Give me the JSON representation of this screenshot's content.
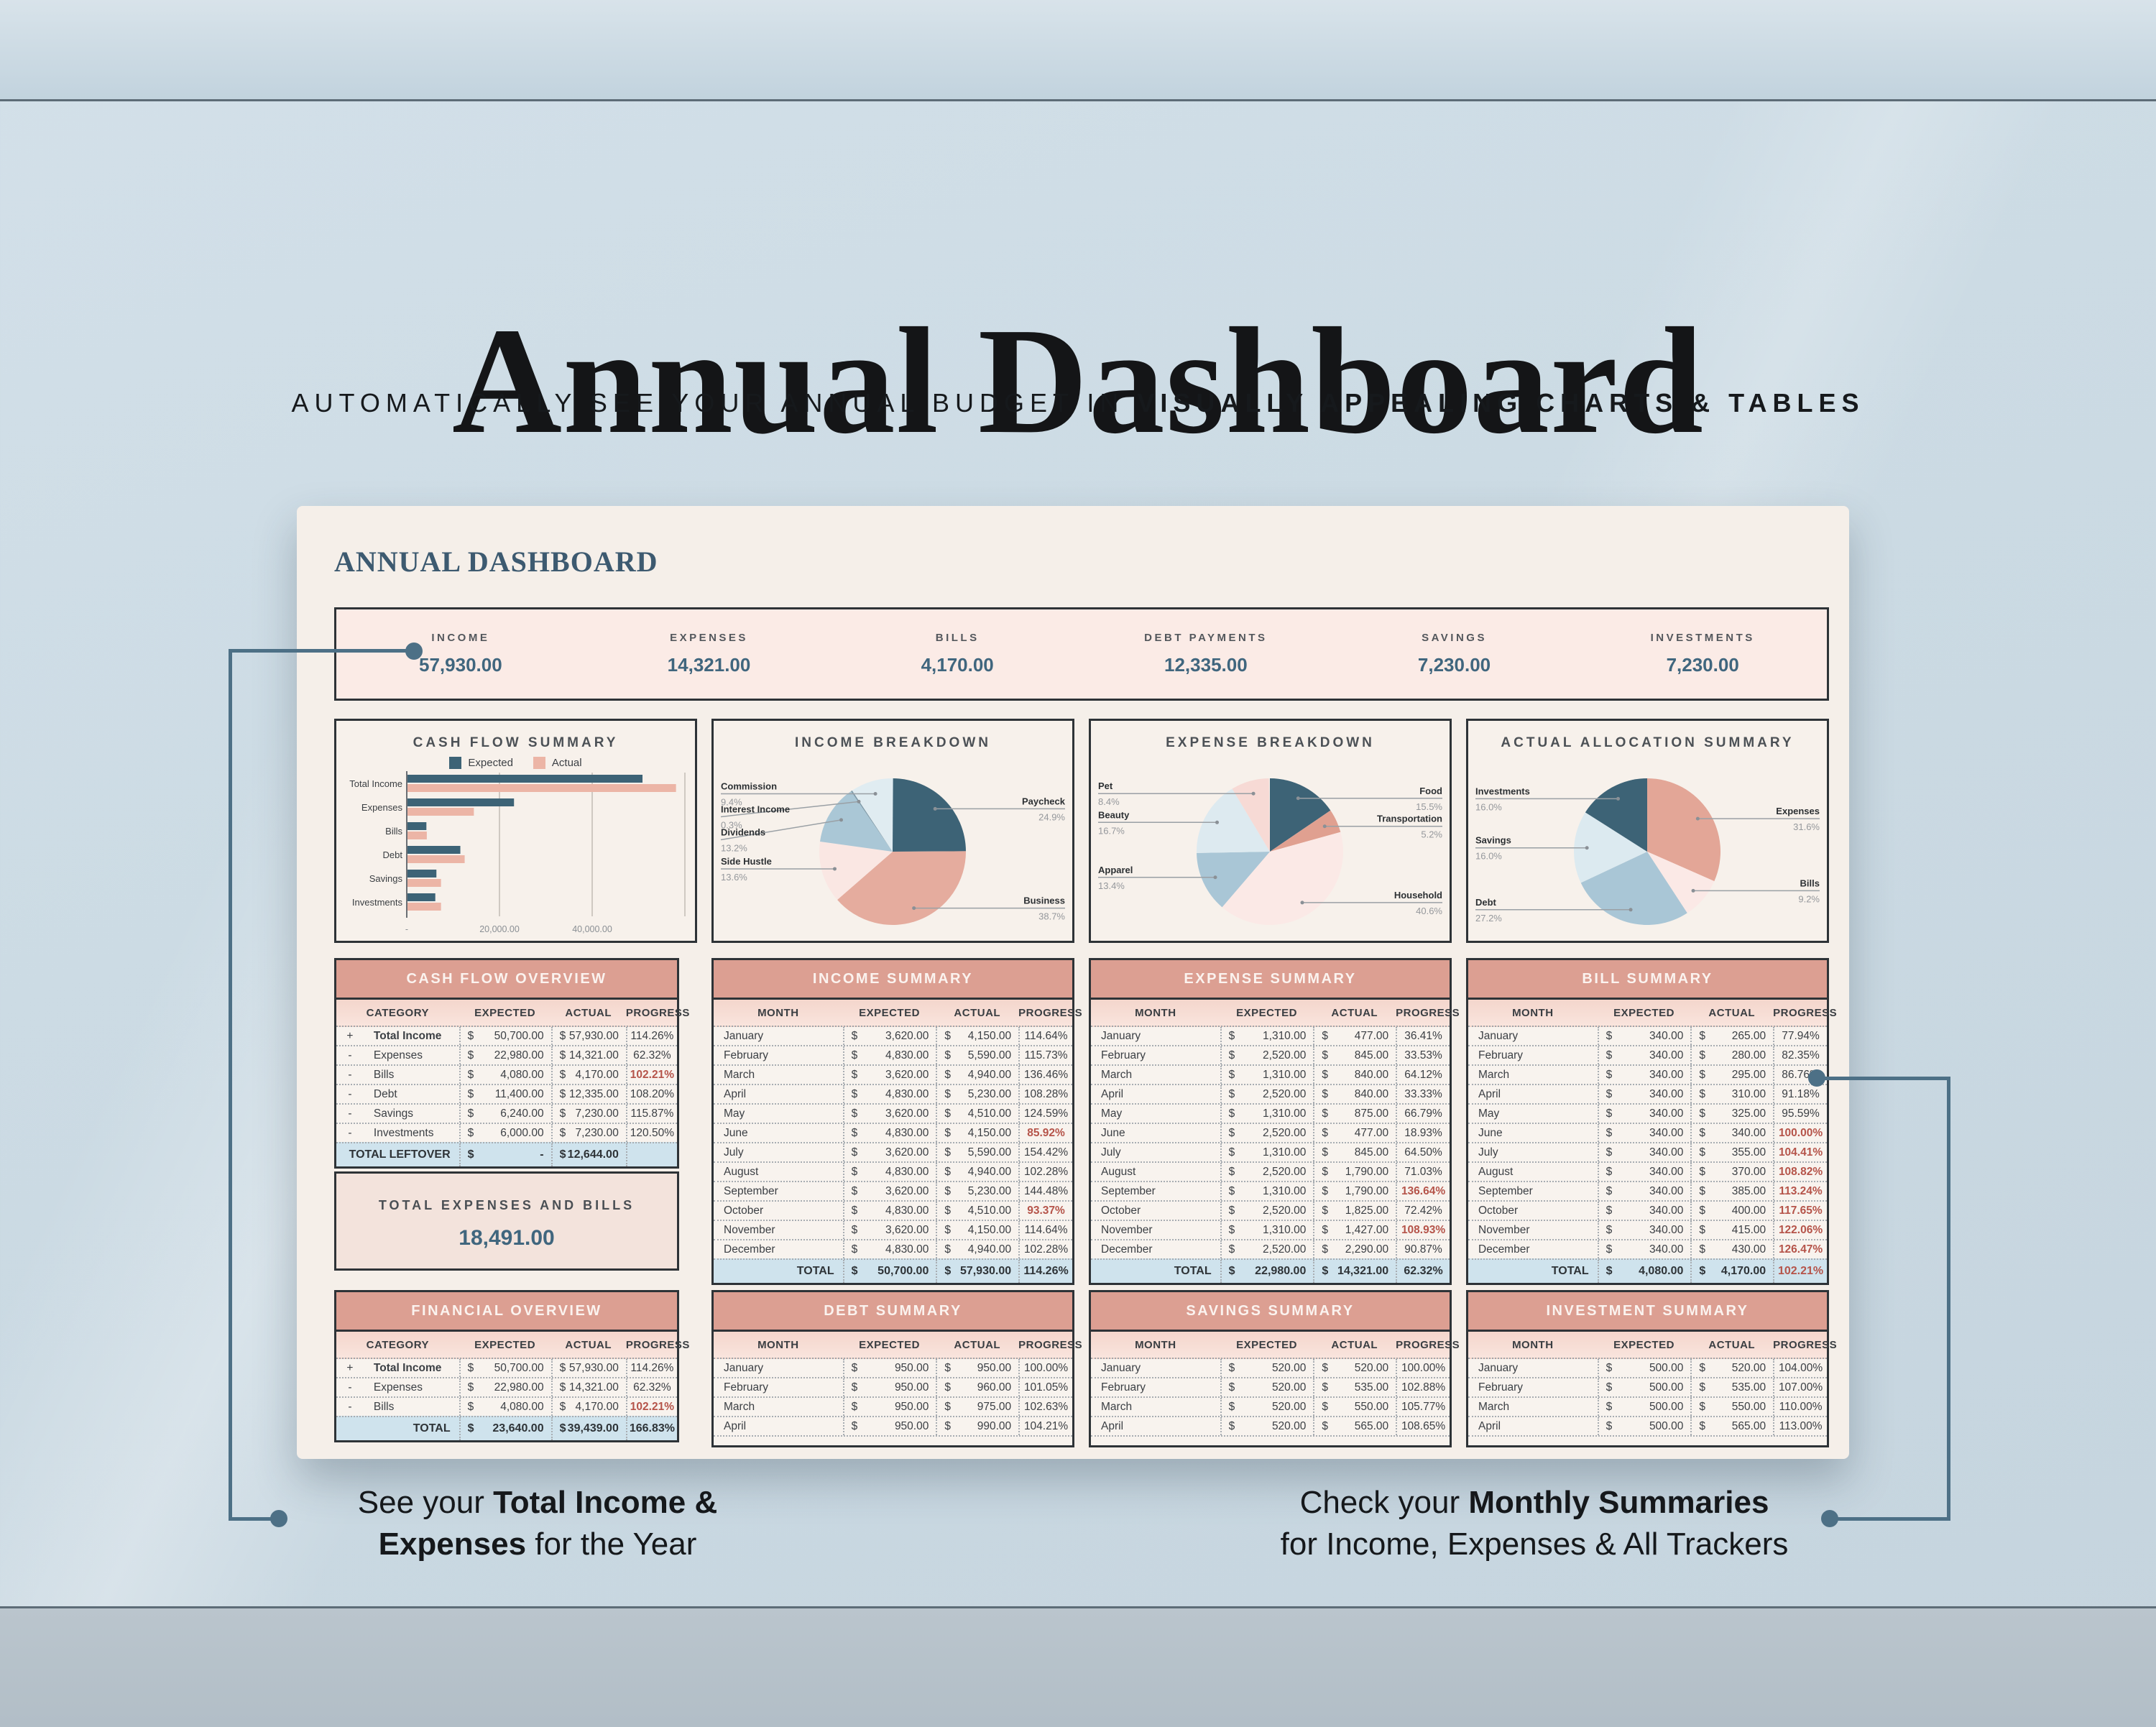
{
  "page": {
    "title": "Annual Dashboard",
    "subtitle": {
      "normal": "AUTOMATICALLY SEE YOUR ANNUAL BUDGET IN ",
      "bold": "VISUALLY APPEALING CHARTS & TABLES"
    },
    "captions": {
      "left": {
        "lines": [
          [
            {
              "t": "See your ",
              "b": false
            },
            {
              "t": "Total Income &",
              "b": true
            }
          ],
          [
            {
              "t": "Expenses",
              "b": true
            },
            {
              "t": " for the Year",
              "b": false
            }
          ]
        ]
      },
      "right": {
        "lines": [
          [
            {
              "t": "Check your ",
              "b": false
            },
            {
              "t": "Monthly Summaries",
              "b": true
            }
          ],
          [
            {
              "t": "for Income, Expenses & All Trackers",
              "b": false
            }
          ]
        ]
      }
    },
    "colors": {
      "connector": "#4d7086",
      "accent_blue": "#3d6376",
      "accent_salmon": "#dc9f92",
      "value_blue": "#40667e",
      "alert_red": "#b5544a"
    }
  },
  "dashboard": {
    "heading": "ANNUAL DASHBOARD",
    "metrics": [
      {
        "label": "INCOME",
        "value": "57,930.00"
      },
      {
        "label": "EXPENSES",
        "value": "14,321.00"
      },
      {
        "label": "BILLS",
        "value": "4,170.00"
      },
      {
        "label": "DEBT PAYMENTS",
        "value": "12,335.00"
      },
      {
        "label": "SAVINGS",
        "value": "7,230.00"
      },
      {
        "label": "INVESTMENTS",
        "value": "7,230.00"
      }
    ],
    "total_box": {
      "label": "TOTAL EXPENSES AND BILLS",
      "value": "18,491.00"
    },
    "tables": {
      "cash_flow_overview": {
        "title": "CASH FLOW OVERVIEW",
        "columns": [
          "CATEGORY",
          "EXPECTED",
          "ACTUAL",
          "PROGRESS"
        ],
        "rows": [
          {
            "sign": "+",
            "label": "Total Income",
            "bold": true,
            "expected": "50,700.00",
            "actual": "57,930.00",
            "progress": "114.26%"
          },
          {
            "sign": "-",
            "label": "Expenses",
            "expected": "22,980.00",
            "actual": "14,321.00",
            "progress": "62.32%"
          },
          {
            "sign": "-",
            "label": "Bills",
            "expected": "4,080.00",
            "actual": "4,170.00",
            "progress": "102.21%",
            "red": true
          },
          {
            "sign": "-",
            "label": "Debt",
            "expected": "11,400.00",
            "actual": "12,335.00",
            "progress": "108.20%"
          },
          {
            "sign": "-",
            "label": "Savings",
            "expected": "6,240.00",
            "actual": "7,230.00",
            "progress": "115.87%"
          },
          {
            "sign": "-",
            "label": "Investments",
            "expected": "6,000.00",
            "actual": "7,230.00",
            "progress": "120.50%"
          }
        ],
        "total": {
          "label": "TOTAL LEFTOVER",
          "expected": "-",
          "actual": "12,644.00",
          "progress": ""
        }
      },
      "income_summary": {
        "title": "INCOME SUMMARY",
        "columns": [
          "MONTH",
          "EXPECTED",
          "ACTUAL",
          "PROGRESS"
        ],
        "rows": [
          {
            "label": "January",
            "expected": "3,620.00",
            "actual": "4,150.00",
            "progress": "114.64%"
          },
          {
            "label": "February",
            "expected": "4,830.00",
            "actual": "5,590.00",
            "progress": "115.73%"
          },
          {
            "label": "March",
            "expected": "3,620.00",
            "actual": "4,940.00",
            "progress": "136.46%"
          },
          {
            "label": "April",
            "expected": "4,830.00",
            "actual": "5,230.00",
            "progress": "108.28%"
          },
          {
            "label": "May",
            "expected": "3,620.00",
            "actual": "4,510.00",
            "progress": "124.59%"
          },
          {
            "label": "June",
            "expected": "4,830.00",
            "actual": "4,150.00",
            "progress": "85.92%",
            "red": true
          },
          {
            "label": "July",
            "expected": "3,620.00",
            "actual": "5,590.00",
            "progress": "154.42%"
          },
          {
            "label": "August",
            "expected": "4,830.00",
            "actual": "4,940.00",
            "progress": "102.28%"
          },
          {
            "label": "September",
            "expected": "3,620.00",
            "actual": "5,230.00",
            "progress": "144.48%"
          },
          {
            "label": "October",
            "expected": "4,830.00",
            "actual": "4,510.00",
            "progress": "93.37%",
            "red": true
          },
          {
            "label": "November",
            "expected": "3,620.00",
            "actual": "4,150.00",
            "progress": "114.64%"
          },
          {
            "label": "December",
            "expected": "4,830.00",
            "actual": "4,940.00",
            "progress": "102.28%"
          }
        ],
        "total": {
          "label": "TOTAL",
          "expected": "50,700.00",
          "actual": "57,930.00",
          "progress": "114.26%"
        }
      },
      "expense_summary": {
        "title": "EXPENSE SUMMARY",
        "columns": [
          "MONTH",
          "EXPECTED",
          "ACTUAL",
          "PROGRESS"
        ],
        "rows": [
          {
            "label": "January",
            "expected": "1,310.00",
            "actual": "477.00",
            "progress": "36.41%"
          },
          {
            "label": "February",
            "expected": "2,520.00",
            "actual": "845.00",
            "progress": "33.53%"
          },
          {
            "label": "March",
            "expected": "1,310.00",
            "actual": "840.00",
            "progress": "64.12%"
          },
          {
            "label": "April",
            "expected": "2,520.00",
            "actual": "840.00",
            "progress": "33.33%"
          },
          {
            "label": "May",
            "expected": "1,310.00",
            "actual": "875.00",
            "progress": "66.79%"
          },
          {
            "label": "June",
            "expected": "2,520.00",
            "actual": "477.00",
            "progress": "18.93%"
          },
          {
            "label": "July",
            "expected": "1,310.00",
            "actual": "845.00",
            "progress": "64.50%"
          },
          {
            "label": "August",
            "expected": "2,520.00",
            "actual": "1,790.00",
            "progress": "71.03%"
          },
          {
            "label": "September",
            "expected": "1,310.00",
            "actual": "1,790.00",
            "progress": "136.64%",
            "red": true
          },
          {
            "label": "October",
            "expected": "2,520.00",
            "actual": "1,825.00",
            "progress": "72.42%"
          },
          {
            "label": "November",
            "expected": "1,310.00",
            "actual": "1,427.00",
            "progress": "108.93%",
            "red": true
          },
          {
            "label": "December",
            "expected": "2,520.00",
            "actual": "2,290.00",
            "progress": "90.87%"
          }
        ],
        "total": {
          "label": "TOTAL",
          "expected": "22,980.00",
          "actual": "14,321.00",
          "progress": "62.32%"
        }
      },
      "bill_summary": {
        "title": "BILL SUMMARY",
        "columns": [
          "MONTH",
          "EXPECTED",
          "ACTUAL",
          "PROGRESS"
        ],
        "rows": [
          {
            "label": "January",
            "expected": "340.00",
            "actual": "265.00",
            "progress": "77.94%"
          },
          {
            "label": "February",
            "expected": "340.00",
            "actual": "280.00",
            "progress": "82.35%"
          },
          {
            "label": "March",
            "expected": "340.00",
            "actual": "295.00",
            "progress": "86.76%"
          },
          {
            "label": "April",
            "expected": "340.00",
            "actual": "310.00",
            "progress": "91.18%"
          },
          {
            "label": "May",
            "expected": "340.00",
            "actual": "325.00",
            "progress": "95.59%"
          },
          {
            "label": "June",
            "expected": "340.00",
            "actual": "340.00",
            "progress": "100.00%",
            "red": true
          },
          {
            "label": "July",
            "expected": "340.00",
            "actual": "355.00",
            "progress": "104.41%",
            "red": true
          },
          {
            "label": "August",
            "expected": "340.00",
            "actual": "370.00",
            "progress": "108.82%",
            "red": true
          },
          {
            "label": "September",
            "expected": "340.00",
            "actual": "385.00",
            "progress": "113.24%",
            "red": true
          },
          {
            "label": "October",
            "expected": "340.00",
            "actual": "400.00",
            "progress": "117.65%",
            "red": true
          },
          {
            "label": "November",
            "expected": "340.00",
            "actual": "415.00",
            "progress": "122.06%",
            "red": true
          },
          {
            "label": "December",
            "expected": "340.00",
            "actual": "430.00",
            "progress": "126.47%",
            "red": true
          }
        ],
        "total": {
          "label": "TOTAL",
          "expected": "4,080.00",
          "actual": "4,170.00",
          "progress": "102.21%",
          "red": true
        }
      },
      "financial_overview": {
        "title": "FINANCIAL OVERVIEW",
        "columns": [
          "CATEGORY",
          "EXPECTED",
          "ACTUAL",
          "PROGRESS"
        ],
        "rows": [
          {
            "sign": "+",
            "label": "Total Income",
            "bold": true,
            "expected": "50,700.00",
            "actual": "57,930.00",
            "progress": "114.26%"
          },
          {
            "sign": "-",
            "label": "Expenses",
            "expected": "22,980.00",
            "actual": "14,321.00",
            "progress": "62.32%"
          },
          {
            "sign": "-",
            "label": "Bills",
            "expected": "4,080.00",
            "actual": "4,170.00",
            "progress": "102.21%",
            "red": true
          }
        ],
        "total": {
          "label": "TOTAL",
          "expected": "23,640.00",
          "actual": "39,439.00",
          "progress": "166.83%"
        }
      },
      "debt_summary": {
        "title": "DEBT SUMMARY",
        "columns": [
          "MONTH",
          "EXPECTED",
          "ACTUAL",
          "PROGRESS"
        ],
        "cut": true,
        "rows": [
          {
            "label": "January",
            "expected": "950.00",
            "actual": "950.00",
            "progress": "100.00%"
          },
          {
            "label": "February",
            "expected": "950.00",
            "actual": "960.00",
            "progress": "101.05%"
          },
          {
            "label": "March",
            "expected": "950.00",
            "actual": "975.00",
            "progress": "102.63%"
          },
          {
            "label": "April",
            "expected": "950.00",
            "actual": "990.00",
            "progress": "104.21%"
          }
        ]
      },
      "savings_summary": {
        "title": "SAVINGS SUMMARY",
        "columns": [
          "MONTH",
          "EXPECTED",
          "ACTUAL",
          "PROGRESS"
        ],
        "cut": true,
        "rows": [
          {
            "label": "January",
            "expected": "520.00",
            "actual": "520.00",
            "progress": "100.00%"
          },
          {
            "label": "February",
            "expected": "520.00",
            "actual": "535.00",
            "progress": "102.88%"
          },
          {
            "label": "March",
            "expected": "520.00",
            "actual": "550.00",
            "progress": "105.77%"
          },
          {
            "label": "April",
            "expected": "520.00",
            "actual": "565.00",
            "progress": "108.65%"
          }
        ]
      },
      "investment_summary": {
        "title": "INVESTMENT SUMMARY",
        "columns": [
          "MONTH",
          "EXPECTED",
          "ACTUAL",
          "PROGRESS"
        ],
        "cut": true,
        "rows": [
          {
            "label": "January",
            "expected": "500.00",
            "actual": "520.00",
            "progress": "104.00%"
          },
          {
            "label": "February",
            "expected": "500.00",
            "actual": "535.00",
            "progress": "107.00%"
          },
          {
            "label": "March",
            "expected": "500.00",
            "actual": "550.00",
            "progress": "110.00%"
          },
          {
            "label": "April",
            "expected": "500.00",
            "actual": "565.00",
            "progress": "113.00%"
          }
        ]
      }
    }
  },
  "chart_data": [
    {
      "type": "bar",
      "title": "CASH FLOW SUMMARY",
      "orientation": "horizontal",
      "categories": [
        "Total Income",
        "Expenses",
        "Bills",
        "Debt",
        "Savings",
        "Investments"
      ],
      "series": [
        {
          "name": "Expected",
          "color": "#3d6376",
          "values": [
            50700,
            22980,
            4080,
            11400,
            6240,
            6000
          ]
        },
        {
          "name": "Actual",
          "color": "#ecb5a6",
          "values": [
            57930,
            14321,
            4170,
            12335,
            7230,
            7230
          ]
        }
      ],
      "xlim": [
        0,
        60000
      ],
      "x_ticks": [
        {
          "v": 0,
          "label": "-"
        },
        {
          "v": 20000,
          "label": "20,000.00"
        },
        {
          "v": 40000,
          "label": "40,000.00"
        }
      ],
      "grid": true,
      "legend_position": "top"
    },
    {
      "type": "pie",
      "title": "INCOME BREAKDOWN",
      "slices": [
        {
          "label": "Paycheck",
          "pct": 24.9,
          "color": "#3d6376"
        },
        {
          "label": "Business",
          "pct": 38.7,
          "color": "#e5ac9e"
        },
        {
          "label": "Side Hustle",
          "pct": 13.6,
          "color": "#fae7e3"
        },
        {
          "label": "Dividends",
          "pct": 13.2,
          "color": "#aac7d6"
        },
        {
          "label": "Interest Income",
          "pct": 0.3,
          "color": "#7d99a8"
        },
        {
          "label": "Commission",
          "pct": 9.4,
          "color": "#e0ecf1"
        }
      ]
    },
    {
      "type": "pie",
      "title": "EXPENSE BREAKDOWN",
      "slices": [
        {
          "label": "Food",
          "pct": 15.5,
          "color": "#3d6376"
        },
        {
          "label": "Transportation",
          "pct": 5.2,
          "color": "#e0a090"
        },
        {
          "label": "Household",
          "pct": 40.6,
          "color": "#fbe9e6"
        },
        {
          "label": "Apparel",
          "pct": 13.4,
          "color": "#a9c6d6"
        },
        {
          "label": "Beauty",
          "pct": 16.7,
          "color": "#ddeaf0"
        },
        {
          "label": "Pet",
          "pct": 8.4,
          "color": "#f7dad5"
        }
      ]
    },
    {
      "type": "pie",
      "title": "ACTUAL ALLOCATION SUMMARY",
      "slices": [
        {
          "label": "Expenses",
          "pct": 31.6,
          "color": "#e3a697"
        },
        {
          "label": "Bills",
          "pct": 9.2,
          "color": "#fbe9e6"
        },
        {
          "label": "Debt",
          "pct": 27.2,
          "color": "#a9c6d6"
        },
        {
          "label": "Savings",
          "pct": 16.0,
          "color": "#dceaf0"
        },
        {
          "label": "Investments",
          "pct": 16.0,
          "color": "#3d6376"
        }
      ]
    }
  ]
}
